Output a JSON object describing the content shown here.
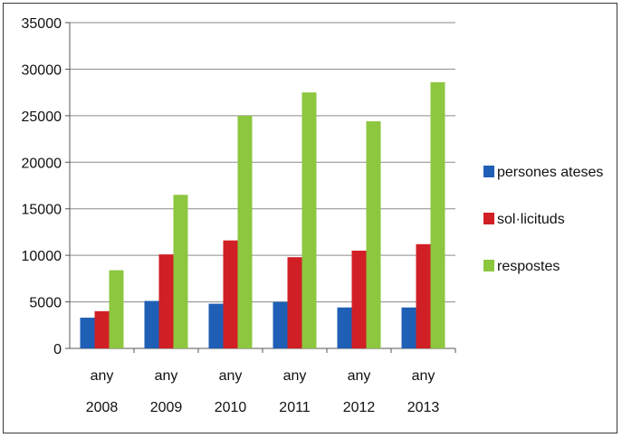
{
  "chart_data": {
    "type": "bar",
    "categories": [
      {
        "line1": "any",
        "line2": "2008"
      },
      {
        "line1": "any",
        "line2": "2009"
      },
      {
        "line1": "any",
        "line2": "2010"
      },
      {
        "line1": "any",
        "line2": "2011"
      },
      {
        "line1": "any",
        "line2": "2012"
      },
      {
        "line1": "any",
        "line2": "2013"
      }
    ],
    "series": [
      {
        "name": "persones ateses",
        "color": "#1f5fb5",
        "values": [
          3300,
          5100,
          4800,
          5000,
          4400,
          4400
        ]
      },
      {
        "name": "sol·licituds",
        "color": "#d11f26",
        "values": [
          4000,
          10100,
          11600,
          9800,
          10500,
          11200
        ]
      },
      {
        "name": "respostes",
        "color": "#8dc63f",
        "values": [
          8400,
          16500,
          25000,
          27500,
          24400,
          28600
        ]
      }
    ],
    "ylim": [
      0,
      35000
    ],
    "yticks": [
      0,
      5000,
      10000,
      15000,
      20000,
      25000,
      30000,
      35000
    ],
    "grid": true,
    "legend": "right",
    "title": "",
    "xlabel": "",
    "ylabel": ""
  }
}
